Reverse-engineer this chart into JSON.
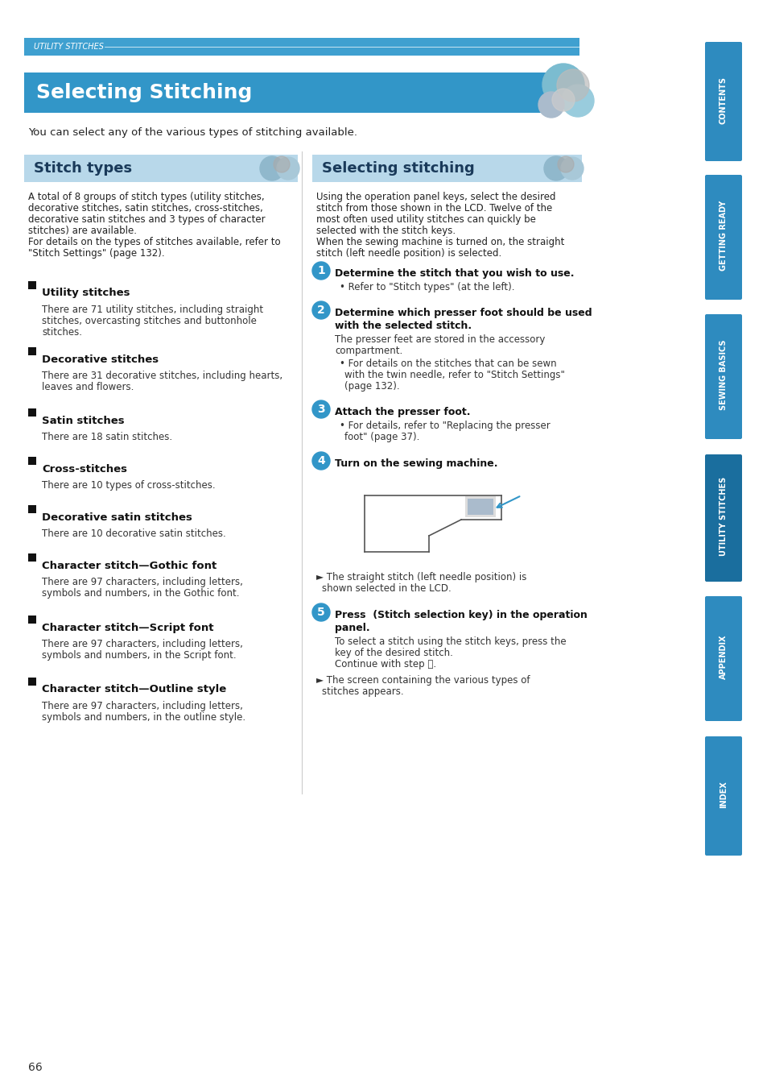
{
  "page_bg": "#ffffff",
  "top_bar_color": "#3fa0d0",
  "top_bar_text": "UTILITY STITCHES",
  "top_bar_text_color": "#ffffff",
  "main_title": "Selecting Stitching",
  "main_title_bg": "#3296c8",
  "main_title_color": "#ffffff",
  "subtitle_text": "You can select any of the various types of stitching available.",
  "left_section_title": "Stitch types",
  "left_section_title_bg": "#b8d8ea",
  "right_section_title": "Selecting stitching",
  "right_section_title_bg": "#b8d8ea",
  "left_intro": "A total of 8 groups of stitch types (utility stitches,\ndecorative stitches, satin stitches, cross-stitches,\ndecorative satin stitches and 3 types of character\nstitches) are available.\nFor details on the types of stitches available, refer to\n\"Stitch Settings\" (page 132).",
  "stitch_items": [
    {
      "name": "Utility stitches",
      "desc": "There are 71 utility stitches, including straight\nstitches, overcasting stitches and buttonhole\nstitches."
    },
    {
      "name": "Decorative stitches",
      "desc": "There are 31 decorative stitches, including hearts,\nleaves and flowers."
    },
    {
      "name": "Satin stitches",
      "desc": "There are 18 satin stitches."
    },
    {
      "name": "Cross-stitches",
      "desc": "There are 10 types of cross-stitches."
    },
    {
      "name": "Decorative satin stitches",
      "desc": "There are 10 decorative satin stitches."
    },
    {
      "name": "Character stitch—Gothic font",
      "desc": "There are 97 characters, including letters,\nsymbols and numbers, in the Gothic font."
    },
    {
      "name": "Character stitch—Script font",
      "desc": "There are 97 characters, including letters,\nsymbols and numbers, in the Script font."
    },
    {
      "name": "Character stitch—Outline style",
      "desc": "There are 97 characters, including letters,\nsymbols and numbers, in the outline style."
    }
  ],
  "right_intro": "Using the operation panel keys, select the desired\nstitch from those shown in the LCD. Twelve of the\nmost often used utility stitches can quickly be\nselected with the stitch keys.\nWhen the sewing machine is turned on, the straight\nstitch (left needle position) is selected.",
  "sidebar_tabs": [
    "CONTENTS",
    "GETTING READY",
    "SEWING BASICS",
    "UTILITY STITCHES",
    "APPENDIX",
    "INDEX"
  ],
  "sidebar_color": "#2e8bbf",
  "sidebar_active": "UTILITY STITCHES",
  "sidebar_active_color": "#1a6e9e",
  "page_number": "66",
  "accent_color": "#3296c8"
}
